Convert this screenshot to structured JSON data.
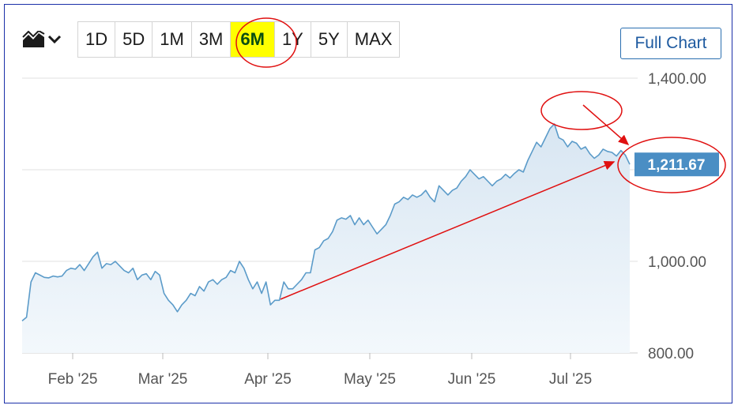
{
  "toolbar": {
    "chart_type_icon": "area-chart-icon",
    "dropdown_icon": "chevron-down-icon",
    "ranges": [
      "1D",
      "5D",
      "1M",
      "3M",
      "6M",
      "1Y",
      "5Y",
      "MAX"
    ],
    "active_range": "6M",
    "full_chart_label": "Full Chart"
  },
  "colors": {
    "line": "#5b9bc9",
    "area_top": "#d8e6f2",
    "area_bottom": "#f3f8fc",
    "highlight": "#ffff00",
    "annotation": "#e01010",
    "price_label_bg": "#4a8ec4"
  },
  "chart_data": {
    "type": "area",
    "ylim": [
      800,
      1400
    ],
    "yticks": [
      {
        "value": 1400,
        "label": "1,400.00"
      },
      {
        "value": 1000,
        "label": "1,000.00"
      },
      {
        "value": 800,
        "label": "800.00"
      }
    ],
    "gridlines": [
      1400,
      1200,
      1000
    ],
    "x_labels": [
      "Feb '25",
      "Mar '25",
      "Apr '25",
      "May '25",
      "Jun '25",
      "Jul '25"
    ],
    "last_value_label": "1,211.67",
    "series": [
      {
        "values": [
          870,
          878,
          955,
          975,
          970,
          965,
          964,
          968,
          966,
          968,
          980,
          985,
          983,
          993,
          980,
          995,
          1010,
          1020,
          985,
          995,
          993,
          1000,
          990,
          980,
          975,
          985,
          960,
          970,
          973,
          960,
          978,
          970,
          930,
          915,
          905,
          890,
          905,
          915,
          930,
          925,
          945,
          935,
          955,
          960,
          950,
          960,
          965,
          980,
          975,
          1000,
          985,
          960,
          940,
          955,
          930,
          955,
          905,
          915,
          915,
          955,
          940,
          940,
          950,
          960,
          975,
          975,
          1025,
          1030,
          1045,
          1050,
          1065,
          1090,
          1095,
          1092,
          1100,
          1080,
          1095,
          1080,
          1090,
          1075,
          1060,
          1070,
          1080,
          1100,
          1125,
          1130,
          1140,
          1135,
          1145,
          1140,
          1145,
          1155,
          1140,
          1130,
          1165,
          1155,
          1145,
          1155,
          1160,
          1175,
          1185,
          1200,
          1190,
          1180,
          1185,
          1175,
          1165,
          1175,
          1180,
          1190,
          1182,
          1192,
          1200,
          1195,
          1220,
          1240,
          1260,
          1250,
          1270,
          1290,
          1300,
          1270,
          1265,
          1250,
          1262,
          1258,
          1245,
          1250,
          1235,
          1225,
          1232,
          1245,
          1240,
          1238,
          1230,
          1242,
          1232,
          1211.67
        ]
      }
    ]
  }
}
